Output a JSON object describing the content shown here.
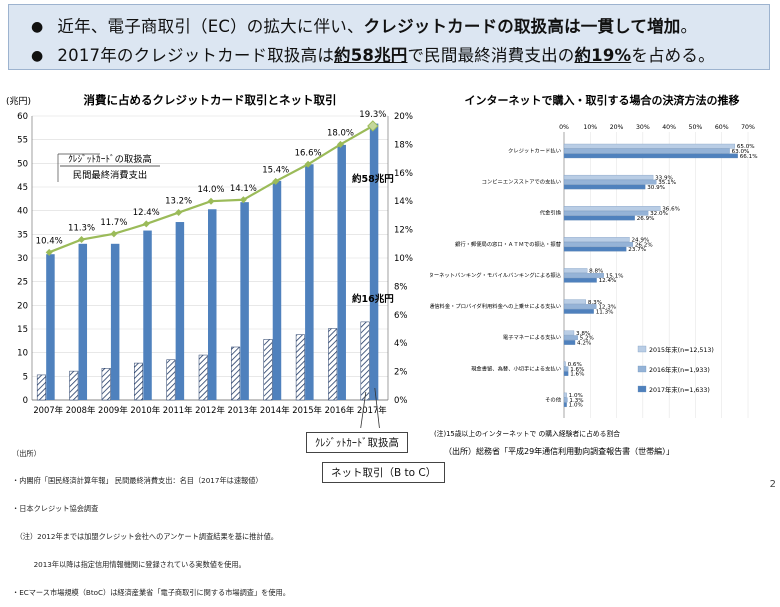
{
  "banner": {
    "line1": {
      "pre": "近年、電子商取引（EC）の拡大に伴い、",
      "bold": "クレジットカードの取扱高は一貫して増加",
      "post": "。"
    },
    "line2": {
      "pre": "2017年のクレジットカード取扱高は",
      "u1": "約58兆円",
      "mid": "で民間最終消費支出の",
      "u2": "約19%",
      "post": "を占める。"
    }
  },
  "page_number": "2",
  "chart_data": [
    {
      "type": "bar",
      "title": "消費に占めるクレジットカード取引とネット取引",
      "ylabel": "(兆円)",
      "categories": [
        "2007年",
        "2008年",
        "2009年",
        "2010年",
        "2011年",
        "2012年",
        "2013年",
        "2014年",
        "2015年",
        "2016年",
        "2017年"
      ],
      "ylim": [
        0,
        60
      ],
      "y2lim": [
        0,
        20
      ],
      "yticks": [
        "0",
        "5",
        "10",
        "15",
        "20",
        "25",
        "30",
        "35",
        "40",
        "45",
        "50",
        "55",
        "60"
      ],
      "y2ticks": [
        "0%",
        "2%",
        "4%",
        "6%",
        "8%",
        "10%",
        "12%",
        "14%",
        "16%",
        "18%",
        "20%"
      ],
      "series": [
        {
          "name": "クレジットカード取扱高",
          "kind": "bar",
          "color": "#4f81bd",
          "values": [
            30.8,
            33.0,
            33.0,
            35.8,
            37.6,
            40.3,
            41.8,
            46.3,
            49.8,
            53.9,
            58.4
          ]
        },
        {
          "name": "ネット取引（B to C）",
          "kind": "bar-hatched",
          "values": [
            5.3,
            6.1,
            6.7,
            7.8,
            8.5,
            9.5,
            11.2,
            12.8,
            13.8,
            15.1,
            16.5
          ]
        },
        {
          "name": "クレジットカードの取扱高 / 民間最終消費支出",
          "kind": "line",
          "axis": "right",
          "color": "#9bbb59",
          "values": [
            10.4,
            11.3,
            11.7,
            12.4,
            13.2,
            14.0,
            14.1,
            15.4,
            16.6,
            18.0,
            19.3
          ],
          "labels": [
            "10.4%",
            "11.3%",
            "11.7%",
            "12.4%",
            "13.2%",
            "14.0%",
            "14.1%",
            "15.4%",
            "16.6%",
            "18.0%",
            "19.3%"
          ]
        }
      ],
      "annotations": {
        "ratio_label_line1": "ｸﾚｼﾞｯﾄｶｰﾄﾞの取扱高",
        "ratio_label_line2": "民間最終消費支出",
        "card_total": "約58兆円",
        "net_total": "約16兆円",
        "card_box": "ｸﾚｼﾞｯﾄｶｰﾄﾞ取扱高",
        "net_box": "ネット取引（B to C）"
      },
      "sources": [
        "（出所）",
        "・内閣府「国民経済計算年報」 民間最終消費支出：名目（2017年は速報値）",
        "・日本クレジット協会調査",
        "　（注）2012年までは加盟クレジット会社へのアンケート調査結果を基に推計値。",
        "　　　2013年以降は指定信用情報機関に登録されている実数値を使用。",
        "・ECマース市場規模（BtoC）は経済産業省「電子商取引に関する市場調査」を使用。"
      ]
    },
    {
      "type": "bar",
      "orientation": "horizontal",
      "title": "インターネットで購入・取引する場合の決済方法の推移",
      "xticks": [
        "0%",
        "10%",
        "20%",
        "30%",
        "40%",
        "50%",
        "60%",
        "70%"
      ],
      "xlim": [
        0,
        70
      ],
      "categories": [
        "クレジットカード払い",
        "コンビニエンスストアでの支払い",
        "代金引換",
        "銀行・郵便局の窓口・ＡＴＭでの振込・振替",
        "インターネットバンキング・モバイルバンキングによる振込",
        "通信料金・プロバイダ利用料金への上乗せによる支払い",
        "電子マネーによる支払い",
        "現金書留、為替、小切手による支払い",
        "その他"
      ],
      "series": [
        {
          "name": "2015年末(n=12,513)",
          "color": "#b9cde5",
          "values": [
            65.0,
            33.9,
            36.6,
            24.9,
            8.8,
            8.3,
            3.8,
            0.6,
            1.0
          ],
          "labels": [
            "65.0%",
            "33.9%",
            "36.6%",
            "24.9%",
            "8.8%",
            "8.3%",
            "3.8%",
            "0.6%",
            "1.0%"
          ]
        },
        {
          "name": "2016年末(n=1,933)",
          "color": "#95b3d7",
          "values": [
            63.0,
            35.1,
            32.0,
            26.2,
            15.1,
            12.3,
            5.2,
            1.6,
            1.3
          ],
          "labels": [
            "63.0%",
            "35.1%",
            "32.0%",
            "26.2%",
            "15.1%",
            "12.3%",
            "5.2%",
            "1.6%",
            "1.3%"
          ]
        },
        {
          "name": "2017年末(n=1,633)",
          "color": "#4f81bd",
          "values": [
            66.1,
            30.9,
            26.9,
            23.7,
            12.4,
            11.3,
            4.2,
            1.6,
            1.0
          ],
          "labels": [
            "66.1%",
            "30.9%",
            "26.9%",
            "23.7%",
            "12.4%",
            "11.3%",
            "4.2%",
            "1.6%",
            "1.0%"
          ]
        }
      ],
      "note": "(注)15歳以上のインターネットで の購入経験者に占める割合",
      "source": "（出所）総務省「平成29年通信利用動向調査報告書（世帯編）」"
    }
  ]
}
